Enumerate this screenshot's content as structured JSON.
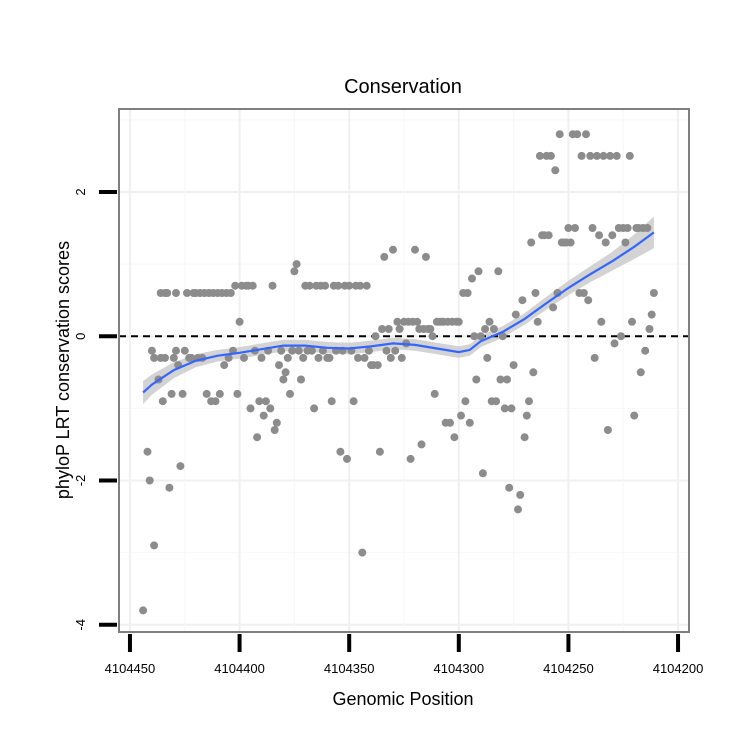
{
  "chart_data": {
    "type": "scatter",
    "title": "Conservation",
    "xlabel": "Genomic Position",
    "ylabel": "phyloP LRT conservation scores",
    "xlim": [
      4104455,
      4104195
    ],
    "ylim": [
      -4.1,
      3.15
    ],
    "x_reversed": true,
    "xticks": [
      4104450,
      4104400,
      4104350,
      4104300,
      4104250,
      4104200
    ],
    "xtick_labels": [
      "4104450",
      "4104400",
      "4104350",
      "4104300",
      "4104250",
      "4104200"
    ],
    "yticks": [
      -4,
      -2,
      0,
      2
    ],
    "ytick_labels": [
      "-4",
      "-2",
      "0",
      "2"
    ],
    "grid": true,
    "reference_line": {
      "y": 0,
      "style": "dashed"
    },
    "point_color": "#8c8c8c",
    "smooth_color": "#3366ff",
    "band_color": "#c8c8c8",
    "points": [
      [
        4104444,
        -3.8
      ],
      [
        4104442,
        -1.6
      ],
      [
        4104441,
        -2.0
      ],
      [
        4104440,
        -0.2
      ],
      [
        4104439,
        -2.9
      ],
      [
        4104439,
        -0.3
      ],
      [
        4104437,
        -0.6
      ],
      [
        4104436,
        0.6
      ],
      [
        4104436,
        -0.3
      ],
      [
        4104435,
        -0.9
      ],
      [
        4104434,
        0.6
      ],
      [
        4104434,
        -0.3
      ],
      [
        4104433,
        0.6
      ],
      [
        4104432,
        -2.1
      ],
      [
        4104431,
        -0.8
      ],
      [
        4104430,
        -0.3
      ],
      [
        4104429,
        0.6
      ],
      [
        4104429,
        -0.2
      ],
      [
        4104428,
        -0.4
      ],
      [
        4104427,
        -1.8
      ],
      [
        4104426,
        -0.8
      ],
      [
        4104425,
        -0.2
      ],
      [
        4104424,
        0.6
      ],
      [
        4104423,
        -0.3
      ],
      [
        4104422,
        -0.3
      ],
      [
        4104421,
        0.6
      ],
      [
        4104420,
        0.6
      ],
      [
        4104419,
        -0.3
      ],
      [
        4104418,
        0.6
      ],
      [
        4104417,
        -0.3
      ],
      [
        4104416,
        0.6
      ],
      [
        4104415,
        -0.8
      ],
      [
        4104414,
        0.6
      ],
      [
        4104413,
        -0.9
      ],
      [
        4104412,
        0.6
      ],
      [
        4104411,
        -0.9
      ],
      [
        4104410,
        0.6
      ],
      [
        4104409,
        -0.8
      ],
      [
        4104408,
        0.6
      ],
      [
        4104407,
        -0.4
      ],
      [
        4104406,
        0.6
      ],
      [
        4104405,
        -0.3
      ],
      [
        4104404,
        0.6
      ],
      [
        4104403,
        -0.2
      ],
      [
        4104402,
        0.7
      ],
      [
        4104401,
        -0.8
      ],
      [
        4104400,
        0.2
      ],
      [
        4104399,
        0.7
      ],
      [
        4104398,
        -0.3
      ],
      [
        4104397,
        0.7
      ],
      [
        4104396,
        0.7
      ],
      [
        4104395,
        -1.0
      ],
      [
        4104394,
        0.7
      ],
      [
        4104393,
        -0.2
      ],
      [
        4104392,
        -1.4
      ],
      [
        4104391,
        -0.9
      ],
      [
        4104390,
        -0.3
      ],
      [
        4104389,
        -1.1
      ],
      [
        4104388,
        -0.9
      ],
      [
        4104387,
        -0.2
      ],
      [
        4104386,
        -1.0
      ],
      [
        4104385,
        0.7
      ],
      [
        4104384,
        -1.3
      ],
      [
        4104383,
        -1.2
      ],
      [
        4104382,
        -0.4
      ],
      [
        4104381,
        -0.2
      ],
      [
        4104380,
        -0.6
      ],
      [
        4104379,
        -0.5
      ],
      [
        4104378,
        -0.3
      ],
      [
        4104377,
        -0.8
      ],
      [
        4104376,
        -0.2
      ],
      [
        4104375,
        0.9
      ],
      [
        4104374,
        1.0
      ],
      [
        4104373,
        -0.2
      ],
      [
        4104372,
        -0.6
      ],
      [
        4104371,
        -0.3
      ],
      [
        4104370,
        0.7
      ],
      [
        4104369,
        -0.2
      ],
      [
        4104368,
        0.7
      ],
      [
        4104367,
        -0.2
      ],
      [
        4104366,
        -1.0
      ],
      [
        4104365,
        0.7
      ],
      [
        4104364,
        -0.3
      ],
      [
        4104363,
        0.7
      ],
      [
        4104362,
        -0.2
      ],
      [
        4104361,
        0.7
      ],
      [
        4104360,
        -0.3
      ],
      [
        4104359,
        -0.3
      ],
      [
        4104358,
        -0.9
      ],
      [
        4104357,
        0.7
      ],
      [
        4104356,
        -0.2
      ],
      [
        4104355,
        0.7
      ],
      [
        4104354,
        -1.6
      ],
      [
        4104353,
        -0.2
      ],
      [
        4104352,
        0.7
      ],
      [
        4104351,
        -1.7
      ],
      [
        4104350,
        0.7
      ],
      [
        4104349,
        -0.2
      ],
      [
        4104348,
        -0.9
      ],
      [
        4104347,
        0.7
      ],
      [
        4104346,
        -0.3
      ],
      [
        4104345,
        0.7
      ],
      [
        4104344,
        -3.0
      ],
      [
        4104343,
        -0.3
      ],
      [
        4104342,
        0.7
      ],
      [
        4104341,
        -0.2
      ],
      [
        4104340,
        -0.4
      ],
      [
        4104339,
        -0.4
      ],
      [
        4104338,
        0.0
      ],
      [
        4104337,
        -0.4
      ],
      [
        4104336,
        -1.6
      ],
      [
        4104335,
        0.1
      ],
      [
        4104334,
        1.1
      ],
      [
        4104333,
        -0.2
      ],
      [
        4104332,
        0.1
      ],
      [
        4104331,
        -0.3
      ],
      [
        4104330,
        1.2
      ],
      [
        4104329,
        -0.2
      ],
      [
        4104328,
        0.2
      ],
      [
        4104327,
        0.1
      ],
      [
        4104326,
        -0.3
      ],
      [
        4104325,
        0.2
      ],
      [
        4104324,
        -0.1
      ],
      [
        4104323,
        0.2
      ],
      [
        4104322,
        -1.7
      ],
      [
        4104321,
        0.2
      ],
      [
        4104320,
        1.2
      ],
      [
        4104319,
        0.2
      ],
      [
        4104318,
        0.1
      ],
      [
        4104317,
        -1.5
      ],
      [
        4104316,
        0.1
      ],
      [
        4104315,
        1.1
      ],
      [
        4104314,
        0.1
      ],
      [
        4104313,
        0.1
      ],
      [
        4104312,
        0.0
      ],
      [
        4104311,
        -0.8
      ],
      [
        4104310,
        0.2
      ],
      [
        4104309,
        0.2
      ],
      [
        4104308,
        0.2
      ],
      [
        4104307,
        0.2
      ],
      [
        4104306,
        -1.2
      ],
      [
        4104305,
        0.2
      ],
      [
        4104304,
        -1.2
      ],
      [
        4104303,
        0.2
      ],
      [
        4104302,
        -1.4
      ],
      [
        4104301,
        0.2
      ],
      [
        4104300,
        0.2
      ],
      [
        4104299,
        -1.1
      ],
      [
        4104298,
        0.6
      ],
      [
        4104297,
        -0.9
      ],
      [
        4104296,
        0.6
      ],
      [
        4104295,
        -1.2
      ],
      [
        4104294,
        0.8
      ],
      [
        4104293,
        0.0
      ],
      [
        4104292,
        -0.6
      ],
      [
        4104291,
        0.9
      ],
      [
        4104290,
        0.0
      ],
      [
        4104289,
        -1.9
      ],
      [
        4104288,
        0.1
      ],
      [
        4104287,
        -0.3
      ],
      [
        4104286,
        0.2
      ],
      [
        4104285,
        -0.9
      ],
      [
        4104284,
        0.1
      ],
      [
        4104283,
        -0.9
      ],
      [
        4104282,
        0.9
      ],
      [
        4104281,
        -0.6
      ],
      [
        4104280,
        0.0
      ],
      [
        4104279,
        -1.0
      ],
      [
        4104278,
        -0.6
      ],
      [
        4104277,
        -2.1
      ],
      [
        4104276,
        -1.0
      ],
      [
        4104275,
        -0.4
      ],
      [
        4104274,
        0.3
      ],
      [
        4104273,
        -2.4
      ],
      [
        4104272,
        -2.2
      ],
      [
        4104271,
        0.5
      ],
      [
        4104270,
        -1.4
      ],
      [
        4104269,
        -1.1
      ],
      [
        4104268,
        -0.9
      ],
      [
        4104267,
        1.3
      ],
      [
        4104266,
        -0.5
      ],
      [
        4104265,
        0.6
      ],
      [
        4104264,
        0.2
      ],
      [
        4104263,
        2.5
      ],
      [
        4104262,
        1.4
      ],
      [
        4104261,
        1.4
      ],
      [
        4104260,
        2.5
      ],
      [
        4104259,
        1.4
      ],
      [
        4104258,
        2.5
      ],
      [
        4104257,
        0.4
      ],
      [
        4104256,
        2.3
      ],
      [
        4104255,
        0.6
      ],
      [
        4104254,
        2.8
      ],
      [
        4104253,
        1.3
      ],
      [
        4104252,
        1.3
      ],
      [
        4104251,
        1.3
      ],
      [
        4104250,
        1.5
      ],
      [
        4104249,
        1.3
      ],
      [
        4104248,
        2.8
      ],
      [
        4104247,
        1.5
      ],
      [
        4104246,
        2.8
      ],
      [
        4104245,
        0.6
      ],
      [
        4104244,
        2.5
      ],
      [
        4104243,
        0.6
      ],
      [
        4104242,
        2.8
      ],
      [
        4104241,
        0.5
      ],
      [
        4104240,
        2.5
      ],
      [
        4104239,
        1.5
      ],
      [
        4104238,
        -0.3
      ],
      [
        4104237,
        2.5
      ],
      [
        4104236,
        1.4
      ],
      [
        4104235,
        0.2
      ],
      [
        4104234,
        2.5
      ],
      [
        4104233,
        1.3
      ],
      [
        4104232,
        -1.3
      ],
      [
        4104231,
        2.5
      ],
      [
        4104230,
        1.4
      ],
      [
        4104229,
        -0.1
      ],
      [
        4104228,
        2.5
      ],
      [
        4104227,
        1.5
      ],
      [
        4104226,
        0.0
      ],
      [
        4104225,
        1.5
      ],
      [
        4104224,
        1.3
      ],
      [
        4104223,
        1.5
      ],
      [
        4104222,
        2.5
      ],
      [
        4104221,
        0.2
      ],
      [
        4104220,
        -1.1
      ],
      [
        4104219,
        1.5
      ],
      [
        4104218,
        1.5
      ],
      [
        4104217,
        -0.5
      ],
      [
        4104216,
        1.5
      ],
      [
        4104215,
        -0.2
      ],
      [
        4104214,
        1.5
      ],
      [
        4104213,
        0.1
      ],
      [
        4104212,
        0.3
      ],
      [
        4104211,
        0.6
      ]
    ],
    "smooth_curve": [
      [
        4104444,
        -0.78
      ],
      [
        4104440,
        -0.67
      ],
      [
        4104430,
        -0.47
      ],
      [
        4104420,
        -0.34
      ],
      [
        4104410,
        -0.27
      ],
      [
        4104400,
        -0.23
      ],
      [
        4104390,
        -0.18
      ],
      [
        4104380,
        -0.13
      ],
      [
        4104370,
        -0.13
      ],
      [
        4104360,
        -0.16
      ],
      [
        4104350,
        -0.17
      ],
      [
        4104340,
        -0.14
      ],
      [
        4104330,
        -0.1
      ],
      [
        4104320,
        -0.12
      ],
      [
        4104310,
        -0.17
      ],
      [
        4104300,
        -0.22
      ],
      [
        4104295,
        -0.19
      ],
      [
        4104290,
        -0.07
      ],
      [
        4104280,
        0.06
      ],
      [
        4104270,
        0.24
      ],
      [
        4104260,
        0.46
      ],
      [
        4104250,
        0.67
      ],
      [
        4104240,
        0.86
      ],
      [
        4104230,
        1.04
      ],
      [
        4104220,
        1.24
      ],
      [
        4104211,
        1.44
      ]
    ],
    "band_halfwidth": [
      0.16,
      0.14,
      0.11,
      0.09,
      0.08,
      0.08,
      0.08,
      0.08,
      0.08,
      0.08,
      0.08,
      0.08,
      0.08,
      0.08,
      0.08,
      0.08,
      0.08,
      0.08,
      0.08,
      0.08,
      0.09,
      0.1,
      0.11,
      0.13,
      0.17,
      0.22
    ]
  }
}
